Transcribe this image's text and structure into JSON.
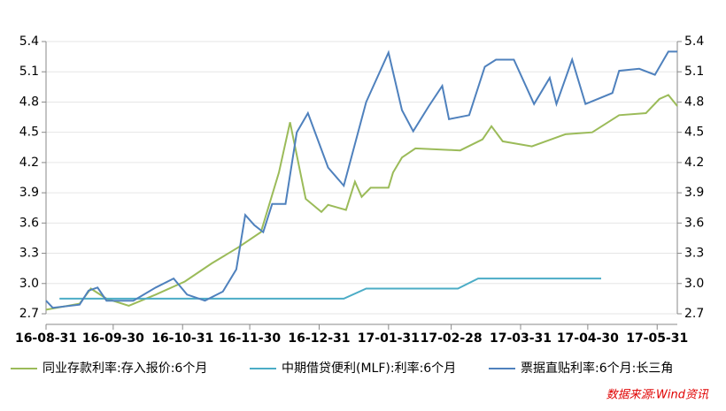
{
  "chart_data": {
    "type": "line",
    "source": "数据来源:Wind资讯",
    "xlim": [
      "16-08-31",
      "17-06-09"
    ],
    "xticks": [
      "16-08-31",
      "16-09-30",
      "16-10-31",
      "16-11-30",
      "16-12-31",
      "17-01-31",
      "17-02-28",
      "17-03-31",
      "17-04-30",
      "17-05-31"
    ],
    "ylim": [
      2.7,
      5.4
    ],
    "yticks": [
      5.4,
      5.1,
      4.8,
      4.5,
      4.2,
      3.9,
      3.6,
      3.3,
      {
        "value": 3,
        "label": "3.0"
      },
      2.7
    ],
    "y2lim": [
      2.7,
      5.4
    ],
    "y2ticks": [
      5.4,
      5.1,
      4.8,
      4.5,
      4.2,
      3.9,
      3.6,
      3.3,
      {
        "value": 3,
        "label": "3.0"
      },
      2.7
    ],
    "grid": true,
    "legend": "bottom",
    "series": [
      {
        "name": "同业存款利率:存入报价:6个月",
        "color": "#9bbb59",
        "x": [
          "16-08-31",
          "16-09-15",
          "16-09-20",
          "16-09-27",
          "16-10-07",
          "16-10-19",
          "16-11-01",
          "16-11-13",
          "16-11-25",
          "16-12-05",
          "16-12-13",
          "16-12-18",
          "16-12-25",
          "17-01-01",
          "17-01-04",
          "17-01-12",
          "17-01-16",
          "17-01-19",
          "17-01-23",
          "17-01-31",
          "17-02-02",
          "17-02-06",
          "17-02-12",
          "17-03-04",
          "17-03-14",
          "17-03-18",
          "17-03-23",
          "17-04-05",
          "17-04-20",
          "17-05-02",
          "17-05-14",
          "17-05-26",
          "17-06-01",
          "17-06-05",
          "17-06-09"
        ],
        "values": [
          2.74,
          2.8,
          2.95,
          2.85,
          2.78,
          2.89,
          3.02,
          3.2,
          3.36,
          3.51,
          4.1,
          4.6,
          3.84,
          3.71,
          3.78,
          3.73,
          4.01,
          3.86,
          3.95,
          3.95,
          4.1,
          4.25,
          4.34,
          4.32,
          4.43,
          4.56,
          4.41,
          4.36,
          4.48,
          4.5,
          4.67,
          4.69,
          4.83,
          4.87,
          4.76
        ]
      },
      {
        "name": "中期借贷便利(MLF):利率:6个月",
        "color": "#4bacc6",
        "x": [
          "16-09-06",
          "17-01-11",
          "17-01-21",
          "17-03-03",
          "17-03-12",
          "17-05-06"
        ],
        "values": [
          2.85,
          2.85,
          2.95,
          2.95,
          3.05,
          3.05
        ]
      },
      {
        "name": "票据直贴利率:6个月:长三角",
        "color": "#4f81bd",
        "x": [
          "16-08-31",
          "16-09-03",
          "16-09-15",
          "16-09-19",
          "16-09-23",
          "16-09-27",
          "16-10-09",
          "16-10-19",
          "16-10-27",
          "16-11-02",
          "16-11-10",
          "16-11-18",
          "16-11-24",
          "16-11-28",
          "16-12-02",
          "16-12-06",
          "16-12-10",
          "16-12-16",
          "16-12-21",
          "16-12-26",
          "17-01-04",
          "17-01-11",
          "17-01-21",
          "17-01-31",
          "17-02-06",
          "17-02-11",
          "17-02-18",
          "17-02-24",
          "17-02-27",
          "17-03-08",
          "17-03-15",
          "17-03-20",
          "17-03-28",
          "17-04-06",
          "17-04-13",
          "17-04-16",
          "17-04-23",
          "17-04-29",
          "17-05-11",
          "17-05-14",
          "17-05-23",
          "17-05-30",
          "17-06-05",
          "17-06-09"
        ],
        "values": [
          2.83,
          2.76,
          2.79,
          2.93,
          2.96,
          2.83,
          2.83,
          2.96,
          3.05,
          2.89,
          2.83,
          2.92,
          3.14,
          3.68,
          3.58,
          3.51,
          3.79,
          3.79,
          4.5,
          4.69,
          4.15,
          3.97,
          4.8,
          5.29,
          4.72,
          4.51,
          4.76,
          4.96,
          4.63,
          4.67,
          5.15,
          5.22,
          5.22,
          4.78,
          5.04,
          4.78,
          5.22,
          4.78,
          4.89,
          5.11,
          5.13,
          5.07,
          5.3,
          5.3
        ]
      }
    ]
  }
}
